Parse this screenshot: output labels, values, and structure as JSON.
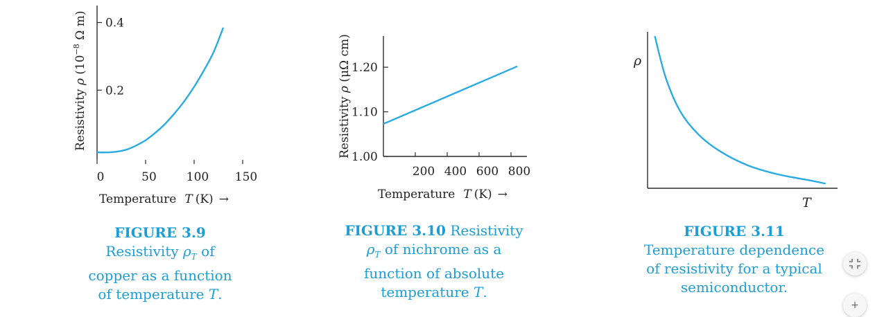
{
  "colors": {
    "curve": "#29abe2",
    "caption": "#1b9dd6"
  },
  "chart_data": [
    {
      "type": "line",
      "xlabel": "Temperature",
      "xvar": "T",
      "xunit": "(K)",
      "xarrow": "→",
      "ylabel": "Resistivity ",
      "yvar": "ρ",
      "yunit": " (10",
      "yexp": "−8",
      "yunit_end": " Ω m)",
      "xlim": [
        0,
        150
      ],
      "ylim": [
        0,
        0.44
      ],
      "xticks": [
        "0",
        "50",
        "100",
        "150"
      ],
      "yticks": [
        "0.2",
        "0.4"
      ],
      "series": [
        {
          "x": [
            0,
            10,
            20,
            30,
            40,
            50,
            60,
            70,
            80,
            90,
            100,
            110,
            120,
            130
          ],
          "y": [
            0.016,
            0.016,
            0.018,
            0.024,
            0.036,
            0.052,
            0.074,
            0.1,
            0.132,
            0.168,
            0.21,
            0.258,
            0.312,
            0.385
          ]
        }
      ]
    },
    {
      "type": "line",
      "xlabel": "Temperature",
      "xvar": "T",
      "xunit": "(K)",
      "xarrow": "→",
      "ylabel": "Resistivity ",
      "yvar": "ρ",
      "yunit": " (μΩ cm)",
      "xlim": [
        0,
        900
      ],
      "ylim": [
        1.0,
        1.27
      ],
      "xticks": [
        "200",
        "400",
        "600",
        "800"
      ],
      "yticks": [
        "1.00",
        "1.10",
        "1.20"
      ],
      "series": [
        {
          "x": [
            0,
            840
          ],
          "y": [
            1.073,
            1.202
          ]
        }
      ]
    },
    {
      "type": "line",
      "xlabel": "T",
      "ylabel": "ρ",
      "series": [
        {
          "x": [
            0.04,
            0.1,
            0.18,
            0.28,
            0.4,
            0.55,
            0.72,
            0.9,
            0.98
          ],
          "y": [
            0.99,
            0.72,
            0.5,
            0.35,
            0.24,
            0.15,
            0.09,
            0.05,
            0.03
          ]
        }
      ]
    }
  ],
  "captions": [
    {
      "fig": "FIGURE 3.9",
      "l1": "Resistivity ",
      "l1var": "ρ",
      "l1sub": "T",
      "l1end": " of",
      "l2": "copper as a function",
      "l3": "of temperature ",
      "l3var": "T",
      "l3end": "."
    },
    {
      "fig": "FIGURE 3.10",
      "l1end": " Resistivity",
      "l2var": "ρ",
      "l2sub": "T",
      "l2": " of nichrome as a",
      "l3": "function of absolute",
      "l4": "temperature ",
      "l4var": "T",
      "l4end": "."
    },
    {
      "fig": "FIGURE 3.11",
      "l2": "Temperature dependence",
      "l3": "of resistivity for a typical",
      "l4": "semiconductor."
    }
  ],
  "controls": {
    "collapse_icon": "collapse-arrows-icon",
    "add_icon": "plus-icon",
    "add_symbol": "+"
  }
}
